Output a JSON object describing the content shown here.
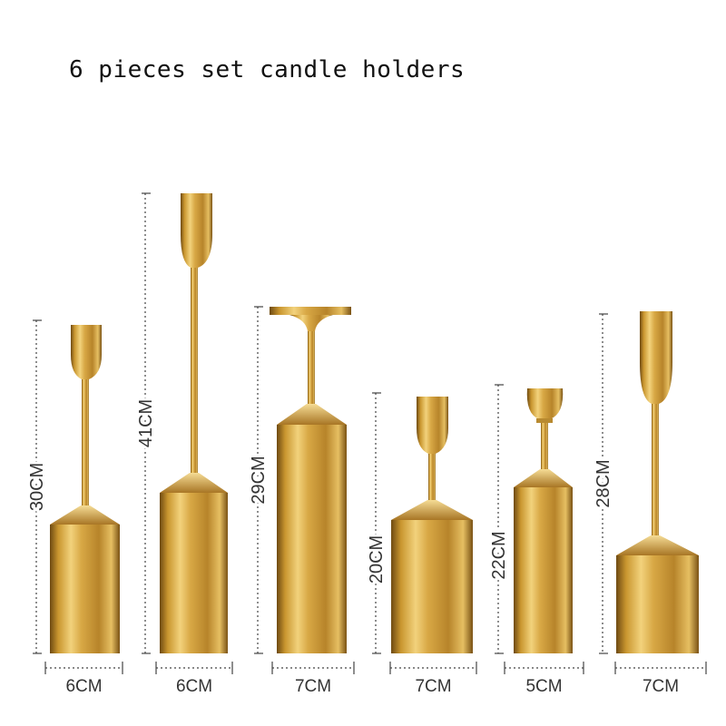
{
  "title": "6 pieces set candle holders",
  "colors": {
    "gold_light": "#f3d98a",
    "gold_mid": "#c99a3a",
    "gold_dark": "#7a5214",
    "dimension_line": "#444444"
  },
  "holders": [
    {
      "height_label": "30CM",
      "width_label": "6CM",
      "top_style": "cup"
    },
    {
      "height_label": "41CM",
      "width_label": "6CM",
      "top_style": "cup"
    },
    {
      "height_label": "29CM",
      "width_label": "7CM",
      "top_style": "plate"
    },
    {
      "height_label": "20CM",
      "width_label": "7CM",
      "top_style": "cup"
    },
    {
      "height_label": "22CM",
      "width_label": "5CM",
      "top_style": "bulb"
    },
    {
      "height_label": "28CM",
      "width_label": "7CM",
      "top_style": "cup"
    }
  ]
}
